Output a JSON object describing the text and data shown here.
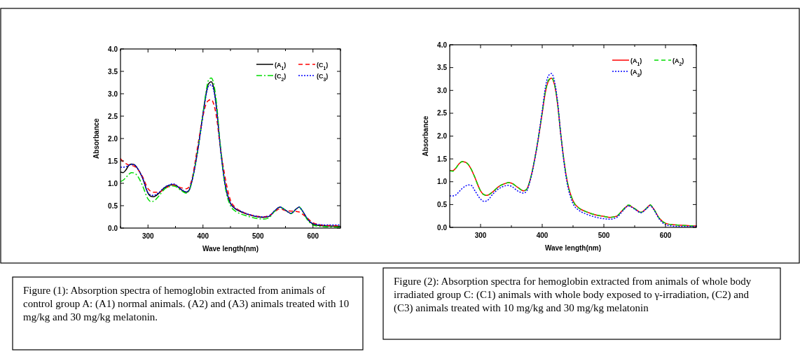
{
  "chart_data": [
    {
      "type": "line",
      "xlabel": "Wave length(nm)",
      "ylabel": "Absorbance",
      "legend": "top right",
      "x": [
        250,
        255,
        260,
        265,
        270,
        275,
        280,
        290,
        300,
        305,
        310,
        320,
        330,
        340,
        345,
        350,
        360,
        370,
        375,
        380,
        390,
        400,
        405,
        410,
        415,
        420,
        425,
        430,
        440,
        450,
        460,
        470,
        480,
        500,
        510,
        520,
        530,
        540,
        550,
        560,
        570,
        575,
        580,
        590,
        600,
        610,
        620,
        650
      ],
      "xlim": [
        250,
        650
      ],
      "ylim": [
        0,
        4
      ],
      "xticks": [
        {
          "value": 250,
          "label": null
        },
        300,
        {
          "value": 350,
          "label": null
        },
        400,
        {
          "value": 450,
          "label": null
        },
        500,
        {
          "value": 550,
          "label": null
        },
        600,
        {
          "value": 650,
          "label": null
        }
      ],
      "yticks": [
        {
          "value": 0,
          "label": "0.0"
        },
        {
          "value": 0.5,
          "label": "0.5"
        },
        {
          "value": 1,
          "label": "1.0"
        },
        {
          "value": 1.5,
          "label": "1.5"
        },
        {
          "value": 2,
          "label": "2.0"
        },
        {
          "value": 2.5,
          "label": "2.5"
        },
        {
          "value": 3,
          "label": "3.0"
        },
        {
          "value": 3.5,
          "label": "3.5"
        },
        {
          "value": 4,
          "label": "4.0"
        }
      ],
      "series": [
        {
          "name": "(A$_{1}$)",
          "color": "#000000",
          "line_style": "solid",
          "values": [
            1.25,
            1.24,
            1.3,
            1.4,
            1.43,
            1.42,
            1.35,
            1.12,
            0.78,
            0.71,
            0.7,
            0.78,
            0.9,
            0.96,
            0.97,
            0.96,
            0.86,
            0.8,
            0.85,
            1.05,
            1.7,
            2.55,
            2.95,
            3.22,
            3.27,
            3.1,
            2.65,
            2.0,
            1.0,
            0.55,
            0.42,
            0.36,
            0.31,
            0.25,
            0.24,
            0.26,
            0.38,
            0.47,
            0.4,
            0.33,
            0.43,
            0.47,
            0.4,
            0.2,
            0.09,
            0.06,
            0.05,
            0.04
          ]
        },
        {
          "name": "(C$_{1}$)",
          "color": "#ff0000",
          "line_style": "dashed",
          "values": [
            1.55,
            1.48,
            1.44,
            1.41,
            1.4,
            1.38,
            1.33,
            1.15,
            0.88,
            0.82,
            0.8,
            0.8,
            0.88,
            0.94,
            0.96,
            0.95,
            0.9,
            0.88,
            0.92,
            1.1,
            1.8,
            2.5,
            2.75,
            2.85,
            2.87,
            2.75,
            2.45,
            1.95,
            1.15,
            0.62,
            0.45,
            0.37,
            0.32,
            0.26,
            0.25,
            0.28,
            0.36,
            0.43,
            0.39,
            0.38,
            0.37,
            0.36,
            0.32,
            0.22,
            0.12,
            0.08,
            0.06,
            0.05
          ]
        },
        {
          "name": "(C$_{2}$)",
          "color": "#00dd00",
          "line_style": "dashdot",
          "values": [
            1.04,
            1.07,
            1.13,
            1.2,
            1.24,
            1.23,
            1.18,
            0.95,
            0.65,
            0.59,
            0.6,
            0.72,
            0.87,
            0.93,
            0.94,
            0.93,
            0.84,
            0.78,
            0.84,
            1.05,
            1.7,
            2.55,
            3.0,
            3.3,
            3.35,
            3.2,
            2.75,
            2.05,
            0.95,
            0.5,
            0.37,
            0.31,
            0.27,
            0.21,
            0.2,
            0.23,
            0.37,
            0.47,
            0.4,
            0.32,
            0.43,
            0.47,
            0.4,
            0.18,
            0.07,
            0.04,
            0.03,
            0.02
          ]
        },
        {
          "name": "(C$_{3}$)",
          "color": "#0000ff",
          "line_style": "dotted",
          "values": [
            1.36,
            1.36,
            1.37,
            1.4,
            1.42,
            1.41,
            1.35,
            1.13,
            0.79,
            0.74,
            0.73,
            0.8,
            0.91,
            0.97,
            0.99,
            0.97,
            0.87,
            0.81,
            0.86,
            1.06,
            1.7,
            2.52,
            2.92,
            3.17,
            3.2,
            3.05,
            2.62,
            1.98,
            1.0,
            0.56,
            0.43,
            0.37,
            0.32,
            0.26,
            0.25,
            0.27,
            0.38,
            0.47,
            0.4,
            0.33,
            0.43,
            0.47,
            0.4,
            0.21,
            0.1,
            0.08,
            0.07,
            0.07
          ]
        }
      ],
      "annotations": [
        "Figure (1): Absorption spectra of hemoglobin extracted from animals of control group A: (A1) normal animals. (A2) and (A3) animals treated with 10 mg/kg and 30 mg/kg melatonin."
      ]
    },
    {
      "type": "line",
      "xlabel": "Wave length(nm)",
      "ylabel": "Absorbance",
      "legend": "top right",
      "x": [
        250,
        255,
        260,
        265,
        270,
        275,
        280,
        285,
        290,
        300,
        305,
        310,
        320,
        330,
        340,
        345,
        350,
        360,
        370,
        375,
        380,
        390,
        400,
        405,
        410,
        415,
        420,
        425,
        430,
        440,
        450,
        460,
        470,
        480,
        500,
        510,
        520,
        530,
        540,
        550,
        560,
        570,
        575,
        580,
        590,
        600,
        610,
        620,
        650
      ],
      "xlim": [
        250,
        650
      ],
      "ylim": [
        0,
        4
      ],
      "xticks": [
        {
          "value": 250,
          "label": null
        },
        300,
        {
          "value": 350,
          "label": null
        },
        400,
        {
          "value": 450,
          "label": null
        },
        500,
        {
          "value": 550,
          "label": null
        },
        600,
        {
          "value": 650,
          "label": null
        }
      ],
      "yticks": [
        {
          "value": 0,
          "label": "0.0"
        },
        {
          "value": 0.5,
          "label": "0.5"
        },
        {
          "value": 1,
          "label": "1.0"
        },
        {
          "value": 1.5,
          "label": "1.5"
        },
        {
          "value": 2,
          "label": "2.0"
        },
        {
          "value": 2.5,
          "label": "2.5"
        },
        {
          "value": 3,
          "label": "3.0"
        },
        {
          "value": 3.5,
          "label": "3.5"
        },
        {
          "value": 4,
          "label": "4.0"
        }
      ],
      "series": [
        {
          "name": "(A$_{1}$)",
          "color": "#ff0000",
          "line_style": "solid",
          "values": [
            1.25,
            1.24,
            1.3,
            1.39,
            1.44,
            1.43,
            1.38,
            1.27,
            1.12,
            0.8,
            0.72,
            0.7,
            0.78,
            0.9,
            0.96,
            0.98,
            0.97,
            0.88,
            0.8,
            0.84,
            1.02,
            1.65,
            2.5,
            2.95,
            3.2,
            3.27,
            3.12,
            2.7,
            2.05,
            1.05,
            0.58,
            0.42,
            0.35,
            0.3,
            0.24,
            0.22,
            0.24,
            0.37,
            0.48,
            0.41,
            0.33,
            0.43,
            0.49,
            0.42,
            0.2,
            0.09,
            0.06,
            0.05,
            0.03
          ]
        },
        {
          "name": "(A$_{2}$)",
          "color": "#00dd00",
          "line_style": "dashed",
          "values": [
            1.24,
            1.23,
            1.3,
            1.39,
            1.44,
            1.43,
            1.38,
            1.27,
            1.12,
            0.8,
            0.72,
            0.7,
            0.78,
            0.9,
            0.96,
            0.98,
            0.97,
            0.88,
            0.8,
            0.84,
            1.02,
            1.66,
            2.52,
            2.97,
            3.22,
            3.28,
            3.13,
            2.7,
            2.05,
            1.05,
            0.58,
            0.42,
            0.35,
            0.3,
            0.24,
            0.22,
            0.24,
            0.37,
            0.49,
            0.41,
            0.33,
            0.43,
            0.5,
            0.42,
            0.2,
            0.09,
            0.06,
            0.05,
            0.03
          ]
        },
        {
          "name": "(A$_{3}$)",
          "color": "#0000ff",
          "line_style": "dotted",
          "values": [
            0.69,
            0.69,
            0.71,
            0.78,
            0.85,
            0.9,
            0.93,
            0.92,
            0.82,
            0.62,
            0.57,
            0.58,
            0.73,
            0.85,
            0.91,
            0.92,
            0.9,
            0.8,
            0.75,
            0.8,
            1.0,
            1.65,
            2.55,
            3.05,
            3.32,
            3.37,
            3.2,
            2.75,
            2.05,
            1.0,
            0.52,
            0.37,
            0.3,
            0.25,
            0.19,
            0.18,
            0.21,
            0.35,
            0.47,
            0.4,
            0.32,
            0.42,
            0.48,
            0.41,
            0.18,
            0.06,
            0.03,
            0.02,
            0.02
          ]
        }
      ],
      "annotations": [
        "Figure (2): Absorption spectra for hemoglobin extracted from animals of whole body irradiated group C: (C1) animals  with whole body exposed to γ-irradiation, (C2) and (C3) animals treated with 10 mg/kg and 30 mg/kg melatonin"
      ]
    }
  ]
}
